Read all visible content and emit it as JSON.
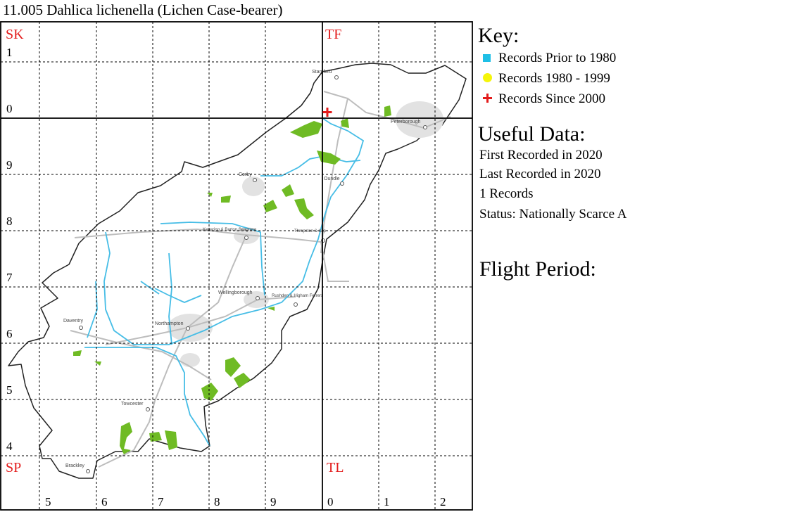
{
  "title": "11.005 Dahlica lichenella (Lichen Case-bearer)",
  "grid": {
    "square_labels": {
      "nw": "SK",
      "ne": "TF",
      "sw": "SP",
      "se": "TL"
    },
    "row_labels": [
      "1",
      "0",
      "9",
      "8",
      "7",
      "6",
      "5",
      "4"
    ],
    "col_labels": [
      "5",
      "6",
      "7",
      "8",
      "9",
      "0",
      "1",
      "2"
    ]
  },
  "towns": [
    "Stamford",
    "Peterborough",
    "Corby",
    "Oundle",
    "Kettering & Barton Seagrave",
    "Thrapston & Islip",
    "Wellingborough",
    "Rushden & Higham Ferrers",
    "Daventry",
    "Northampton",
    "Towcester",
    "Brackley"
  ],
  "key": {
    "title": "Key:",
    "items": [
      {
        "label": "Records Prior to 1980",
        "icon": "cyan-square-icon",
        "color": "#1fbfe6"
      },
      {
        "label": "Records 1980 - 1999",
        "icon": "yellow-dot-icon",
        "color": "#f5f50a"
      },
      {
        "label": "Records Since 2000",
        "icon": "red-plus-icon",
        "color": "#e31b1b"
      }
    ]
  },
  "useful_data": {
    "title": "Useful Data:",
    "lines": [
      "First Recorded in 2020",
      "Last Recorded in 2020",
      "1 Records",
      "Status: Nationally Scarce A"
    ]
  },
  "flight_period": {
    "title": "Flight Period:"
  }
}
